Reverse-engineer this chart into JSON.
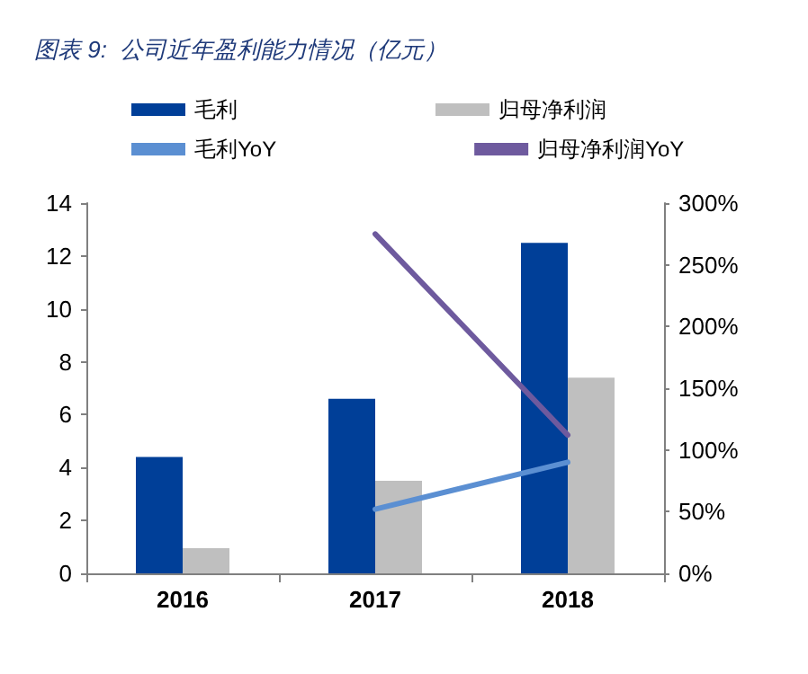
{
  "chart_data": {
    "type": "bar",
    "title": "图表 9:  公司近年盈利能力情况（亿元）",
    "categories": [
      "2016",
      "2017",
      "2018"
    ],
    "series": [
      {
        "name": "毛利",
        "color": "#003f98",
        "values": [
          4.4,
          6.6,
          12.5
        ]
      },
      {
        "name": "归母净利润",
        "color": "#bfbfbf",
        "values": [
          0.95,
          3.5,
          7.4
        ]
      },
      {
        "name": "毛利YoY",
        "type": "line",
        "axis": "y2",
        "color": "#5b8fd2",
        "values": [
          null,
          52,
          90
        ]
      },
      {
        "name": "归母净利润YoY",
        "type": "line",
        "axis": "y2",
        "color": "#6e5a9e",
        "values": [
          null,
          275,
          112
        ]
      }
    ],
    "ylim": [
      0,
      14
    ],
    "yticks": [
      0,
      2,
      4,
      6,
      8,
      10,
      12,
      14
    ],
    "y2lim": [
      0,
      300
    ],
    "y2ticks": [
      {
        "value": 0,
        "label": "0%"
      },
      {
        "value": 50,
        "label": "50%"
      },
      {
        "value": 100,
        "label": "100%"
      },
      {
        "value": 150,
        "label": "150%"
      },
      {
        "value": 200,
        "label": "200%"
      },
      {
        "value": 250,
        "label": "250%"
      },
      {
        "value": 300,
        "label": "300%"
      }
    ],
    "grid": false,
    "legend": "top",
    "marker": "none",
    "line_style": "solid"
  }
}
